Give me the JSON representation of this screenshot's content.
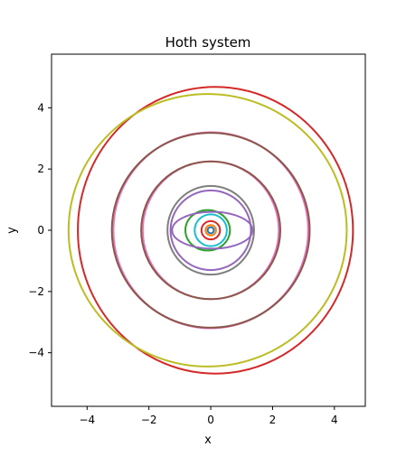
{
  "chart_data": {
    "type": "line",
    "title": "Hoth system",
    "xlabel": "x",
    "ylabel": "y",
    "xlim": [
      -5.15,
      5.0
    ],
    "ylim": [
      -5.75,
      5.75
    ],
    "x_ticks": [
      -4,
      -2,
      0,
      2,
      4
    ],
    "y_ticks": [
      -4,
      -2,
      0,
      2,
      4
    ],
    "x_tick_labels": [
      "−4",
      "−2",
      "0",
      "2",
      "4"
    ],
    "y_tick_labels": [
      "−4",
      "−2",
      "0",
      "2",
      "4"
    ],
    "grid": false,
    "legend": "none",
    "series": [
      {
        "color": "#1f77b4",
        "center": [
          0.0,
          0.0
        ],
        "rx": 0.1,
        "ry": 0.1
      },
      {
        "color": "#ff7f0e",
        "center": [
          0.0,
          0.0
        ],
        "rx": 0.17,
        "ry": 0.17
      },
      {
        "color": "#d62728",
        "center": [
          0.0,
          0.0
        ],
        "rx": 0.3,
        "ry": 0.3
      },
      {
        "color": "#17becf",
        "center": [
          0.0,
          0.0
        ],
        "rx": 0.52,
        "ry": 0.52
      },
      {
        "color": "#2ca02c",
        "center": [
          -0.1,
          0.0
        ],
        "rx": 0.72,
        "ry": 0.66
      },
      {
        "color": "#9467bd",
        "center": [
          0.05,
          0.0
        ],
        "rx": 1.3,
        "ry": 0.6
      },
      {
        "color": "#7f7f7f",
        "center": [
          0.0,
          0.0
        ],
        "rx": 1.4,
        "ry": 1.45
      },
      {
        "color": "#9467bd",
        "center": [
          0.0,
          0.0
        ],
        "rx": 1.3,
        "ry": 1.3
      },
      {
        "color": "#e377c2",
        "center": [
          0.0,
          0.0
        ],
        "rx": 2.2,
        "ry": 2.25
      },
      {
        "color": "#8c564b",
        "center": [
          0.0,
          0.0
        ],
        "rx": 2.25,
        "ry": 2.25
      },
      {
        "color": "#e377c2",
        "center": [
          0.0,
          0.0
        ],
        "rx": 3.15,
        "ry": 3.2
      },
      {
        "color": "#8c564b",
        "center": [
          0.0,
          0.0
        ],
        "rx": 3.2,
        "ry": 3.18
      },
      {
        "color": "#d62728",
        "center": [
          0.15,
          0.0
        ],
        "rx": 4.45,
        "ry": 4.68
      },
      {
        "color": "#bcbd22",
        "center": [
          -0.1,
          0.0
        ],
        "rx": 4.5,
        "ry": 4.45
      }
    ]
  }
}
